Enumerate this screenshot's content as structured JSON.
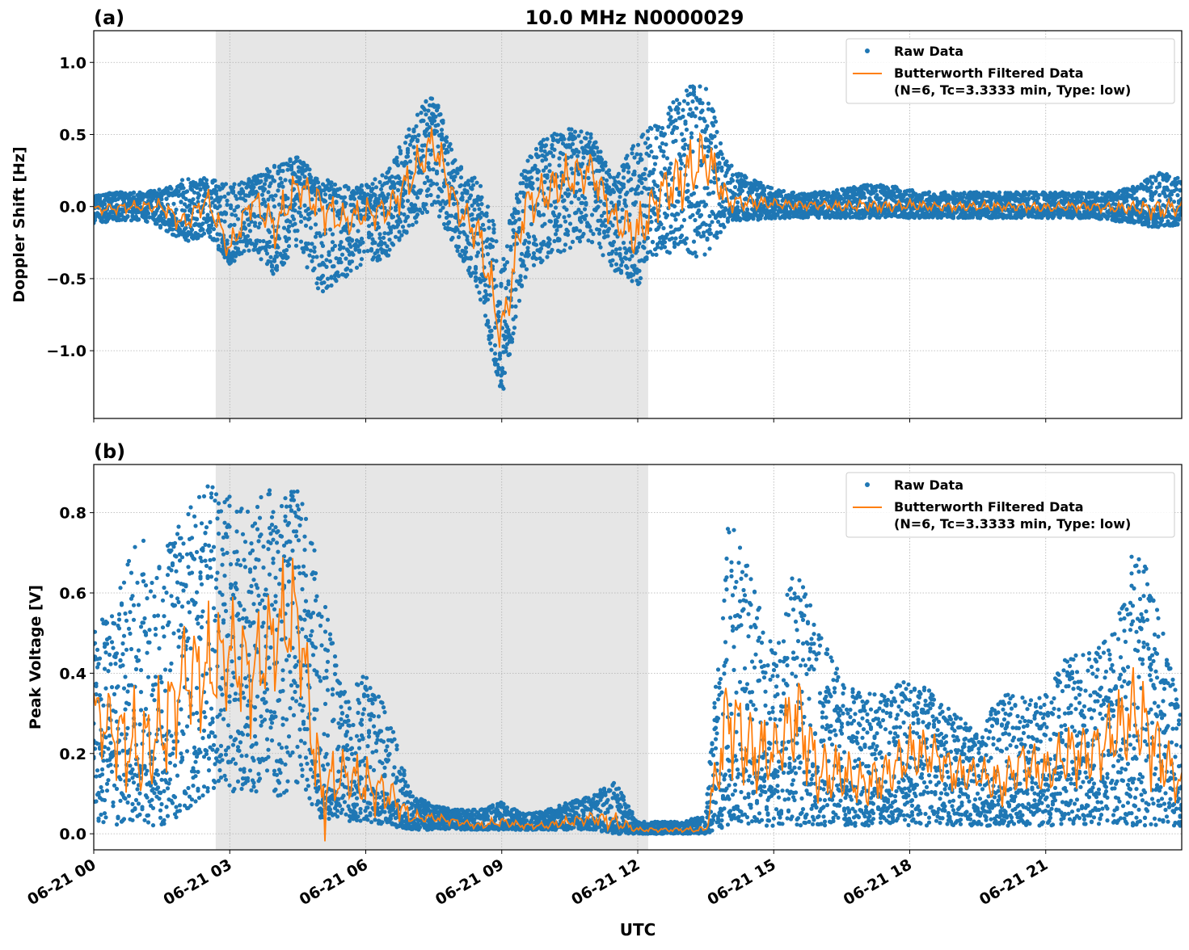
{
  "figure": {
    "title": "10.0 MHz N0000029",
    "xlabel": "UTC"
  },
  "chart_data": [
    {
      "type": "scatter+line",
      "panel_label": "(a)",
      "ylabel": "Doppler Shift [Hz]",
      "xlim_hours": [
        0,
        24
      ],
      "ylim": [
        -1.47,
        1.22
      ],
      "yticks": [
        1.0,
        0.5,
        0.0,
        -0.5,
        -1.0
      ],
      "ytick_labels": [
        "1.0",
        "0.5",
        "0.0",
        "−0.5",
        "−1.0"
      ],
      "xtick_labels": [
        "06-21 00",
        "06-21 03",
        "06-21 06",
        "06-21 09",
        "06-21 12",
        "06-21 15",
        "06-21 18",
        "06-21 21"
      ],
      "xtick_hours": [
        0,
        3,
        6,
        9,
        12,
        15,
        18,
        21
      ],
      "grid": true,
      "shaded_span_hours": [
        2.69,
        12.23
      ],
      "legend": {
        "placement": "top-right",
        "raw": "Raw Data",
        "filtered_line1": "Butterworth Filtered Data",
        "filtered_line2": "(N=6, Tc=3.3333 min, Type: low)"
      },
      "hours": [
        0,
        0.5,
        1,
        1.5,
        2,
        2.5,
        3,
        3.5,
        4,
        4.5,
        5,
        5.5,
        6,
        6.5,
        7,
        7.5,
        8,
        8.5,
        9,
        9.5,
        10,
        10.5,
        11,
        11.5,
        12,
        12.5,
        13,
        13.5,
        14,
        14.5,
        15,
        15.5,
        16,
        16.5,
        17,
        17.5,
        18,
        18.5,
        19,
        19.5,
        20,
        20.5,
        21,
        21.5,
        22,
        22.5,
        23,
        23.5,
        24
      ],
      "series": [
        {
          "name": "Butterworth Filtered Data",
          "kind": "filtered",
          "values": [
            -0.02,
            -0.01,
            0.0,
            0.0,
            -0.12,
            0.05,
            -0.3,
            0.05,
            -0.15,
            0.15,
            0.0,
            -0.1,
            -0.05,
            -0.02,
            0.2,
            0.45,
            0.0,
            -0.2,
            -0.9,
            0.0,
            0.1,
            0.2,
            0.25,
            -0.1,
            -0.2,
            0.1,
            0.2,
            0.35,
            0.03,
            0.03,
            0.02,
            0.01,
            0.01,
            0.0,
            0.01,
            0.0,
            0.01,
            0.0,
            0.0,
            0.0,
            0.0,
            0.0,
            -0.01,
            0.0,
            0.0,
            -0.01,
            -0.01,
            -0.02,
            0.0
          ]
        },
        {
          "name": "Raw Data",
          "kind": "raw_lower",
          "values": [
            -0.12,
            -0.1,
            -0.1,
            -0.15,
            -0.25,
            -0.2,
            -0.4,
            -0.3,
            -0.5,
            -0.3,
            -0.6,
            -0.5,
            -0.4,
            -0.35,
            -0.15,
            0.0,
            -0.3,
            -0.6,
            -1.33,
            -0.5,
            -0.35,
            -0.3,
            -0.25,
            -0.45,
            -0.55,
            -0.3,
            -0.35,
            -0.35,
            -0.1,
            -0.1,
            -0.08,
            -0.08,
            -0.08,
            -0.08,
            -0.08,
            -0.08,
            -0.08,
            -0.08,
            -0.08,
            -0.08,
            -0.08,
            -0.08,
            -0.08,
            -0.08,
            -0.08,
            -0.1,
            -0.12,
            -0.15,
            -0.12
          ]
        },
        {
          "name": "Raw Data",
          "kind": "raw_upper",
          "values": [
            0.08,
            0.1,
            0.1,
            0.12,
            0.2,
            0.2,
            0.15,
            0.2,
            0.3,
            0.35,
            0.2,
            0.15,
            0.15,
            0.25,
            0.6,
            0.8,
            0.3,
            0.2,
            -0.3,
            0.3,
            0.5,
            0.55,
            0.5,
            0.2,
            0.5,
            0.6,
            0.85,
            0.85,
            0.3,
            0.2,
            0.12,
            0.1,
            0.1,
            0.12,
            0.15,
            0.15,
            0.12,
            0.1,
            0.1,
            0.1,
            0.1,
            0.1,
            0.1,
            0.1,
            0.1,
            0.1,
            0.15,
            0.25,
            0.2
          ]
        }
      ]
    },
    {
      "type": "scatter+line",
      "panel_label": "(b)",
      "ylabel": "Peak Voltage [V]",
      "xlim_hours": [
        0,
        24
      ],
      "ylim": [
        -0.04,
        0.92
      ],
      "yticks": [
        0.0,
        0.2,
        0.4,
        0.6,
        0.8
      ],
      "ytick_labels": [
        "0.0",
        "0.2",
        "0.4",
        "0.6",
        "0.8"
      ],
      "xtick_labels": [
        "06-21 00",
        "06-21 03",
        "06-21 06",
        "06-21 09",
        "06-21 12",
        "06-21 15",
        "06-21 18",
        "06-21 21"
      ],
      "xtick_hours": [
        0,
        3,
        6,
        9,
        12,
        15,
        18,
        21
      ],
      "grid": true,
      "shaded_span_hours": [
        2.69,
        12.23
      ],
      "legend": {
        "placement": "top-right",
        "raw": "Raw Data",
        "filtered_line1": "Butterworth Filtered Data",
        "filtered_line2": "(N=6, Tc=3.3333 min, Type: low)"
      },
      "hours": [
        0,
        0.5,
        1,
        1.5,
        2,
        2.5,
        3,
        3.5,
        4,
        4.5,
        5,
        5.5,
        6,
        6.5,
        7,
        7.5,
        8,
        8.5,
        9,
        9.5,
        10,
        10.5,
        11,
        11.5,
        12,
        12.5,
        13,
        13.5,
        14,
        14.5,
        15,
        15.5,
        16,
        16.5,
        17,
        17.5,
        18,
        18.5,
        19,
        19.5,
        20,
        20.5,
        21,
        21.5,
        22,
        22.5,
        23,
        23.5,
        24
      ],
      "series": [
        {
          "name": "Butterworth Filtered Data",
          "kind": "filtered",
          "values": [
            0.3,
            0.25,
            0.2,
            0.25,
            0.4,
            0.4,
            0.45,
            0.4,
            0.5,
            0.55,
            0.1,
            0.15,
            0.12,
            0.1,
            0.04,
            0.04,
            0.03,
            0.02,
            0.03,
            0.02,
            0.02,
            0.03,
            0.04,
            0.03,
            0.01,
            0.01,
            0.01,
            0.01,
            0.3,
            0.2,
            0.2,
            0.3,
            0.15,
            0.15,
            0.12,
            0.15,
            0.2,
            0.2,
            0.15,
            0.15,
            0.12,
            0.18,
            0.15,
            0.2,
            0.2,
            0.25,
            0.3,
            0.2,
            0.12
          ]
        },
        {
          "name": "Raw Data",
          "kind": "raw_lower",
          "values": [
            0.03,
            0.02,
            0.02,
            0.02,
            0.05,
            0.1,
            0.1,
            0.1,
            0.08,
            0.1,
            0.04,
            0.03,
            0.03,
            0.02,
            0.01,
            0.01,
            0.01,
            0.01,
            0.01,
            0.01,
            0.01,
            0.01,
            0.01,
            0.0,
            0.0,
            0.0,
            0.0,
            0.0,
            0.02,
            0.02,
            0.02,
            0.02,
            0.02,
            0.02,
            0.02,
            0.02,
            0.02,
            0.02,
            0.02,
            0.02,
            0.02,
            0.02,
            0.02,
            0.02,
            0.02,
            0.02,
            0.02,
            0.02,
            0.02
          ]
        },
        {
          "name": "Raw Data",
          "kind": "raw_upper",
          "values": [
            0.5,
            0.6,
            0.75,
            0.7,
            0.8,
            0.87,
            0.85,
            0.82,
            0.87,
            0.87,
            0.65,
            0.35,
            0.4,
            0.3,
            0.1,
            0.07,
            0.06,
            0.06,
            0.08,
            0.05,
            0.06,
            0.08,
            0.1,
            0.13,
            0.03,
            0.03,
            0.03,
            0.05,
            0.8,
            0.65,
            0.45,
            0.7,
            0.5,
            0.4,
            0.35,
            0.35,
            0.4,
            0.35,
            0.3,
            0.25,
            0.35,
            0.35,
            0.35,
            0.45,
            0.45,
            0.5,
            0.75,
            0.55,
            0.3
          ]
        }
      ]
    }
  ],
  "colors": {
    "raw": "#1f77b4",
    "filtered": "#ff7f0e",
    "shade": "#e6e6e6",
    "grid": "#b0b0b0"
  }
}
